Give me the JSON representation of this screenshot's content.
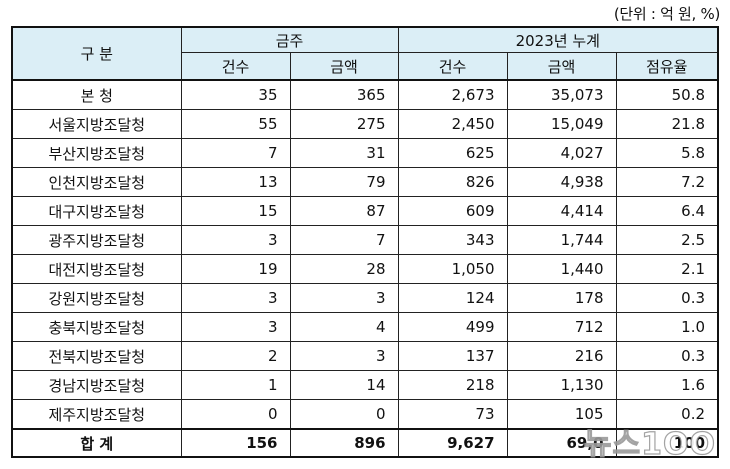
{
  "unit_note": "(단위 : 억 원, %)",
  "headers": {
    "division": "구 분",
    "this_week": "금주",
    "cumulative": "2023년 누계",
    "count": "건수",
    "amount": "금액",
    "count2": "건수",
    "amount2": "금액",
    "share": "점유율"
  },
  "rows": [
    {
      "name": "본 청",
      "w_count": "35",
      "w_amount": "365",
      "c_count": "2,673",
      "c_amount": "35,073",
      "share": "50.8"
    },
    {
      "name": "서울지방조달청",
      "w_count": "55",
      "w_amount": "275",
      "c_count": "2,450",
      "c_amount": "15,049",
      "share": "21.8"
    },
    {
      "name": "부산지방조달청",
      "w_count": "7",
      "w_amount": "31",
      "c_count": "625",
      "c_amount": "4,027",
      "share": "5.8"
    },
    {
      "name": "인천지방조달청",
      "w_count": "13",
      "w_amount": "79",
      "c_count": "826",
      "c_amount": "4,938",
      "share": "7.2"
    },
    {
      "name": "대구지방조달청",
      "w_count": "15",
      "w_amount": "87",
      "c_count": "609",
      "c_amount": "4,414",
      "share": "6.4"
    },
    {
      "name": "광주지방조달청",
      "w_count": "3",
      "w_amount": "7",
      "c_count": "343",
      "c_amount": "1,744",
      "share": "2.5"
    },
    {
      "name": "대전지방조달청",
      "w_count": "19",
      "w_amount": "28",
      "c_count": "1,050",
      "c_amount": "1,440",
      "share": "2.1"
    },
    {
      "name": "강원지방조달청",
      "w_count": "3",
      "w_amount": "3",
      "c_count": "124",
      "c_amount": "178",
      "share": "0.3"
    },
    {
      "name": "충북지방조달청",
      "w_count": "3",
      "w_amount": "4",
      "c_count": "499",
      "c_amount": "712",
      "share": "1.0"
    },
    {
      "name": "전북지방조달청",
      "w_count": "2",
      "w_amount": "3",
      "c_count": "137",
      "c_amount": "216",
      "share": "0.3"
    },
    {
      "name": "경남지방조달청",
      "w_count": "1",
      "w_amount": "14",
      "c_count": "218",
      "c_amount": "1,130",
      "share": "1.6"
    },
    {
      "name": "제주지방조달청",
      "w_count": "0",
      "w_amount": "0",
      "c_count": "73",
      "c_amount": "105",
      "share": "0.2"
    }
  ],
  "total": {
    "name": "합 계",
    "w_count": "156",
    "w_amount": "896",
    "c_count": "9,627",
    "c_amount": "69,0",
    "share": "100"
  },
  "watermark": "뉴스1OO"
}
